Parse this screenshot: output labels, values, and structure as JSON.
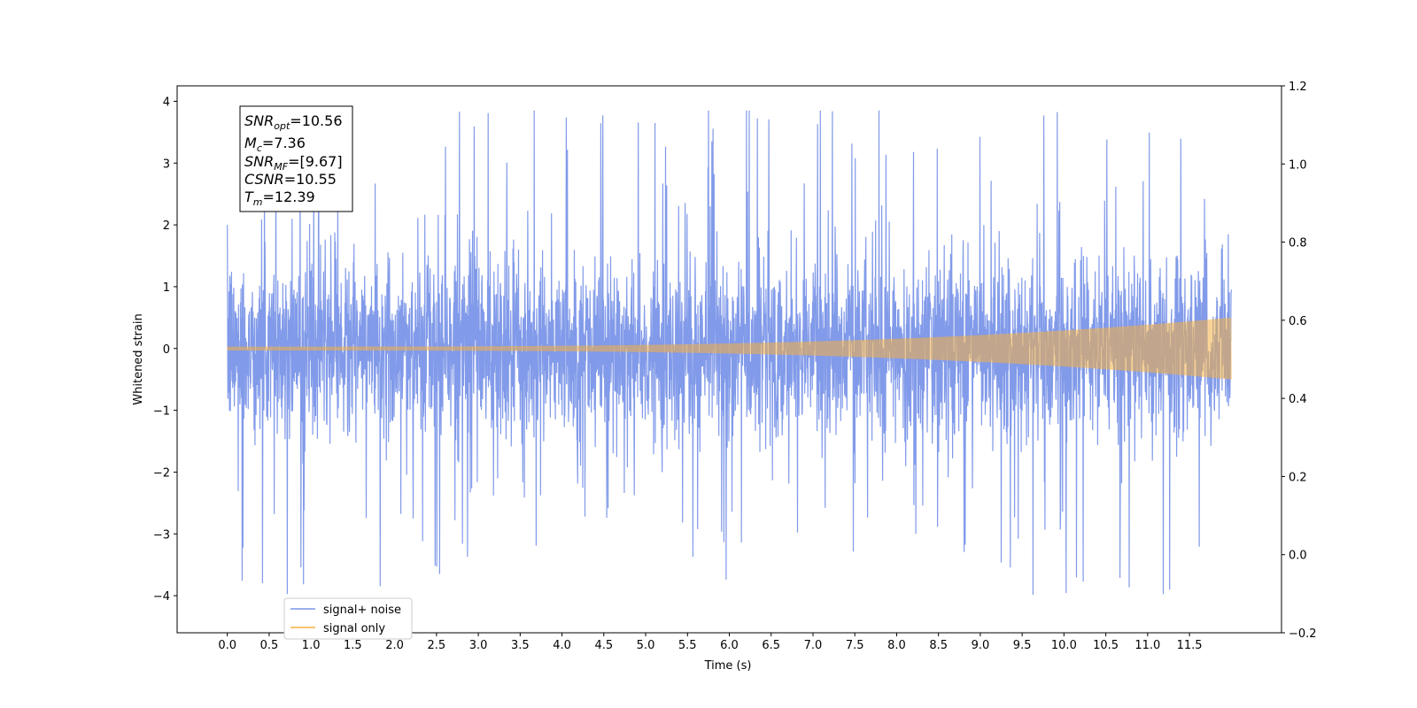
{
  "chart_data": {
    "type": "line",
    "title": "",
    "xlabel": "Time (s)",
    "ylabel": "Whitened strain",
    "xlim": [
      -0.6,
      12.6
    ],
    "ylim": [
      -4.6,
      4.25
    ],
    "y2lim": [
      -0.2,
      1.2
    ],
    "xticks": [
      "0.0",
      "0.5",
      "1.0",
      "1.5",
      "2.0",
      "2.5",
      "3.0",
      "3.5",
      "4.0",
      "4.5",
      "5.0",
      "5.5",
      "6.0",
      "6.5",
      "7.0",
      "7.5",
      "8.0",
      "8.5",
      "9.0",
      "9.5",
      "10.0",
      "10.5",
      "11.0",
      "11.5"
    ],
    "yticks": [
      "4",
      "3",
      "2",
      "1",
      "0",
      "−1",
      "−2",
      "−3",
      "−4"
    ],
    "y2ticks": [
      "1.2",
      "1.0",
      "0.8",
      "0.6",
      "0.4",
      "0.2",
      "0.0",
      "−0.2"
    ],
    "grid": false,
    "legend_position": "lower-left",
    "series": [
      {
        "name": "signal+ noise",
        "color": "#7a95e8",
        "t_range": [
          0.0,
          12.0
        ],
        "envelope": "noise approx ±1.8, spikes to ±4.2"
      },
      {
        "name": "signal only",
        "color": "#f5b041",
        "t_range": [
          0.0,
          12.0
        ],
        "envelope": "chirp amplitude 0.03 at t=0 rising to 0.5 at t=12"
      }
    ],
    "annotation": {
      "lines": [
        {
          "base": "SNR",
          "sub": "opt",
          "value": "=10.56"
        },
        {
          "base": "M",
          "sub": "c",
          "value": "=7.36"
        },
        {
          "base": "SNR",
          "sub": "MF",
          "value": "=[9.67]"
        },
        {
          "base": "CSNR",
          "sub": "",
          "value": "=10.55"
        },
        {
          "base": "T",
          "sub": "m",
          "value": "=12.39"
        }
      ]
    }
  }
}
